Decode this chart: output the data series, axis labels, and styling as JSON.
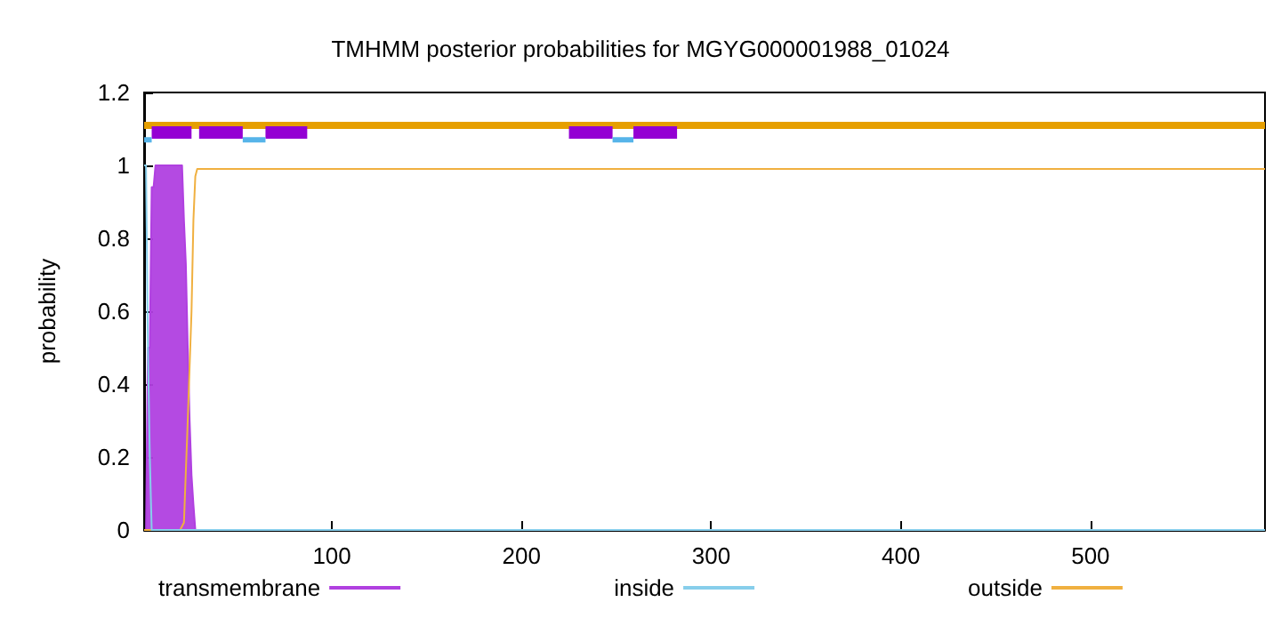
{
  "chart_data": {
    "type": "line",
    "title": "TMHMM posterior probabilities for MGYG000001988_01024",
    "ylabel": "probability",
    "xlim": [
      1,
      592
    ],
    "xticks": [
      100,
      200,
      300,
      400,
      500
    ],
    "ylim": [
      0,
      1.2
    ],
    "yticks": [
      0,
      0.2,
      0.4,
      0.6,
      0.8,
      1,
      1.2
    ],
    "grid": false,
    "legend": "bottom",
    "marker": "none",
    "line_style": "solid",
    "series": [
      {
        "name": "transmembrane",
        "type": "area",
        "color": "#b040e0",
        "x": [
          1,
          2,
          3,
          4,
          5,
          6,
          7,
          10,
          16,
          21,
          22,
          23,
          24,
          25,
          26,
          27,
          28
        ],
        "values": [
          0,
          0,
          0.5,
          0.5,
          0.94,
          0.94,
          1,
          1,
          1,
          1,
          0.85,
          0.73,
          0.5,
          0.3,
          0.15,
          0.07,
          0
        ]
      },
      {
        "name": "inside",
        "color": "#87ceeb",
        "x": [
          1,
          2,
          3,
          4,
          5,
          592
        ],
        "values": [
          1,
          1,
          0.5,
          0.2,
          0,
          0
        ]
      },
      {
        "name": "outside",
        "color": "#f0b040",
        "x": [
          1,
          20,
          22,
          24,
          26,
          27,
          28,
          29,
          30,
          592
        ],
        "values": [
          0,
          0,
          0.02,
          0.3,
          0.6,
          0.85,
          0.97,
          0.99,
          0.99,
          0.99
        ]
      },
      {
        "color": "#e69f00",
        "x": [
          1,
          592
        ],
        "values": [
          1.11,
          1.11
        ]
      },
      {
        "color": "#56b4e9",
        "x": [
          1,
          5,
          6,
          53,
          65,
          66,
          248,
          259
        ],
        "values": [
          1.07,
          1.07,
          null,
          1.07,
          1.07,
          null,
          1.07,
          1.07
        ]
      },
      {
        "color": "#9400d3",
        "x": [
          5,
          26,
          27,
          30,
          53,
          54,
          65,
          87,
          88,
          225,
          248,
          249,
          259,
          282
        ],
        "values": [
          1.09,
          1.09,
          null,
          1.09,
          1.09,
          null,
          1.09,
          1.09,
          null,
          1.09,
          1.09,
          null,
          1.09,
          1.09
        ]
      }
    ]
  }
}
